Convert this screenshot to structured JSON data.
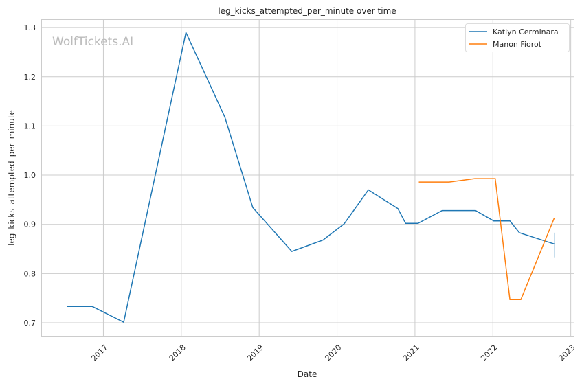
{
  "chart_data": {
    "type": "line",
    "title": "leg_kicks_attempted_per_minute over time",
    "xlabel": "Date",
    "ylabel": "leg_kicks_attempted_per_minute",
    "watermark": "WolfTickets.AI",
    "xlim": [
      "2016-03-15",
      "2023-01-15"
    ],
    "ylim": [
      0.672,
      1.317
    ],
    "x_ticks": [
      "2017",
      "2018",
      "2019",
      "2020",
      "2021",
      "2022",
      "2023"
    ],
    "y_ticks": [
      "0.7",
      "0.8",
      "0.9",
      "1.0",
      "1.1",
      "1.2",
      "1.3"
    ],
    "grid": true,
    "legend_position": "top-right",
    "series": [
      {
        "name": "Katlyn Cerminara",
        "color": "#1f77b4",
        "x": [
          "2016-07-13",
          "2016-11-10",
          "2017-04-06",
          "2018-01-23",
          "2018-07-24",
          "2018-12-02",
          "2019-06-03",
          "2019-10-27",
          "2020-02-03",
          "2020-05-27",
          "2020-10-13",
          "2020-11-18",
          "2021-01-15",
          "2021-05-08",
          "2021-10-12",
          "2022-01-05",
          "2022-03-22",
          "2022-05-05",
          "2022-10-16"
        ],
        "y": [
          0.733,
          0.733,
          0.701,
          1.29,
          1.118,
          0.934,
          0.845,
          0.868,
          0.901,
          0.97,
          0.932,
          0.902,
          0.902,
          0.928,
          0.928,
          0.907,
          0.907,
          0.883,
          0.86
        ],
        "ci_last": [
          0.833,
          0.883
        ]
      },
      {
        "name": "Manon Fiorot",
        "color": "#ff7f0e",
        "x": [
          "2021-01-19",
          "2021-06-10",
          "2021-10-08",
          "2022-01-12",
          "2022-03-22",
          "2022-05-12",
          "2022-10-16"
        ],
        "y": [
          0.986,
          0.986,
          0.993,
          0.993,
          0.747,
          0.747,
          0.913
        ]
      }
    ]
  }
}
